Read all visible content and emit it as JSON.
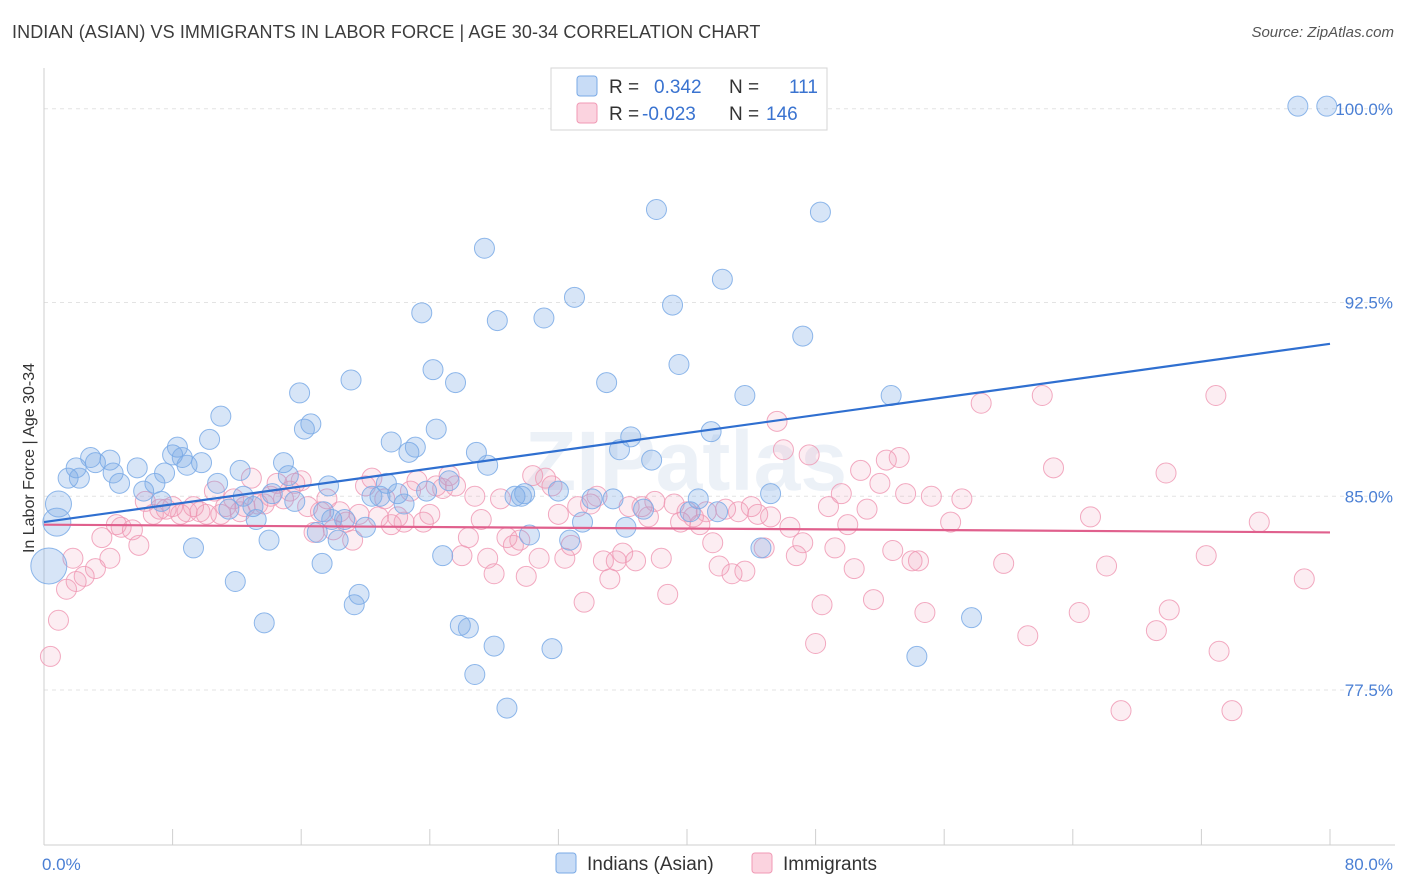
{
  "title": "INDIAN (ASIAN) VS IMMIGRANTS IN LABOR FORCE | AGE 30-34 CORRELATION CHART",
  "source": "Source: ZipAtlas.com",
  "watermark": "ZIPatlas",
  "chart_data": {
    "type": "scatter",
    "ylabel": "In Labor Force | Age 30-34",
    "xlim": [
      0,
      80
    ],
    "ylim": [
      71.5,
      101.5
    ],
    "x_tick_labels": [
      "0.0%",
      "80.0%"
    ],
    "y_ticks": [
      77.5,
      85.0,
      92.5,
      100.0
    ],
    "y_tick_labels": [
      "77.5%",
      "85.0%",
      "92.5%",
      "100.0%"
    ],
    "grid": "horizontal dashed",
    "legend_top": [
      {
        "series": "Indians (Asian)",
        "r_label": "R =",
        "r_value": "0.342",
        "n_label": "N =",
        "n_value": "111"
      },
      {
        "series": "Immigrants",
        "r_label": "R =",
        "r_value": "-0.023",
        "n_label": "N =",
        "n_value": "146"
      }
    ],
    "series": [
      {
        "name": "Indians (Asian)",
        "color": "#7aaae6",
        "line_color": "#2f6fd0",
        "trend": {
          "x": [
            0,
            80
          ],
          "y": [
            84.0,
            90.9
          ]
        },
        "points": [
          [
            0.3,
            82.3
          ],
          [
            0.9,
            84.7
          ],
          [
            0.8,
            84.0
          ],
          [
            1.5,
            85.7
          ],
          [
            2.0,
            86.1
          ],
          [
            2.2,
            85.7
          ],
          [
            2.9,
            86.5
          ],
          [
            3.2,
            86.3
          ],
          [
            4.1,
            86.4
          ],
          [
            4.3,
            85.9
          ],
          [
            4.7,
            85.5
          ],
          [
            5.8,
            86.1
          ],
          [
            6.2,
            85.2
          ],
          [
            6.9,
            85.5
          ],
          [
            7.3,
            84.8
          ],
          [
            7.5,
            85.9
          ],
          [
            8.0,
            86.6
          ],
          [
            8.3,
            86.9
          ],
          [
            8.6,
            86.5
          ],
          [
            8.9,
            86.2
          ],
          [
            9.3,
            83.0
          ],
          [
            9.8,
            86.3
          ],
          [
            10.3,
            87.2
          ],
          [
            10.8,
            85.5
          ],
          [
            11.0,
            88.1
          ],
          [
            11.5,
            84.5
          ],
          [
            11.9,
            81.7
          ],
          [
            12.2,
            86.0
          ],
          [
            12.4,
            85.0
          ],
          [
            13.0,
            84.6
          ],
          [
            13.2,
            84.1
          ],
          [
            13.7,
            80.1
          ],
          [
            14.0,
            83.3
          ],
          [
            14.2,
            85.1
          ],
          [
            14.9,
            86.3
          ],
          [
            15.2,
            85.8
          ],
          [
            15.6,
            84.8
          ],
          [
            15.9,
            89.0
          ],
          [
            16.2,
            87.6
          ],
          [
            16.6,
            87.8
          ],
          [
            17.0,
            83.6
          ],
          [
            17.3,
            82.4
          ],
          [
            17.7,
            85.4
          ],
          [
            17.9,
            84.1
          ],
          [
            18.3,
            83.3
          ],
          [
            18.7,
            84.1
          ],
          [
            19.1,
            89.5
          ],
          [
            19.3,
            80.8
          ],
          [
            19.6,
            81.2
          ],
          [
            20.0,
            83.8
          ],
          [
            20.4,
            85.0
          ],
          [
            20.9,
            85.0
          ],
          [
            21.3,
            85.5
          ],
          [
            21.6,
            87.1
          ],
          [
            22.0,
            85.1
          ],
          [
            22.4,
            84.7
          ],
          [
            22.7,
            86.7
          ],
          [
            23.1,
            86.9
          ],
          [
            23.5,
            92.1
          ],
          [
            23.8,
            85.2
          ],
          [
            24.2,
            89.9
          ],
          [
            24.4,
            87.6
          ],
          [
            24.8,
            82.7
          ],
          [
            25.2,
            85.6
          ],
          [
            25.6,
            89.4
          ],
          [
            25.9,
            80.0
          ],
          [
            26.4,
            79.9
          ],
          [
            26.8,
            78.1
          ],
          [
            26.9,
            86.7
          ],
          [
            27.4,
            94.6
          ],
          [
            27.6,
            86.2
          ],
          [
            28.0,
            79.2
          ],
          [
            28.2,
            91.8
          ],
          [
            28.8,
            76.8
          ],
          [
            29.3,
            85.0
          ],
          [
            29.7,
            85.0
          ],
          [
            30.2,
            83.5
          ],
          [
            31.1,
            91.9
          ],
          [
            31.6,
            79.1
          ],
          [
            32.0,
            85.2
          ],
          [
            32.7,
            83.3
          ],
          [
            33.0,
            92.7
          ],
          [
            34.1,
            84.9
          ],
          [
            35.0,
            89.4
          ],
          [
            35.4,
            84.9
          ],
          [
            35.8,
            86.8
          ],
          [
            36.2,
            83.8
          ],
          [
            36.5,
            87.3
          ],
          [
            37.3,
            84.5
          ],
          [
            37.8,
            86.4
          ],
          [
            38.1,
            96.1
          ],
          [
            39.1,
            92.4
          ],
          [
            39.5,
            90.1
          ],
          [
            40.2,
            84.4
          ],
          [
            40.7,
            84.9
          ],
          [
            41.5,
            87.5
          ],
          [
            41.9,
            84.4
          ],
          [
            42.2,
            93.4
          ],
          [
            43.6,
            88.9
          ],
          [
            44.6,
            83.0
          ],
          [
            45.2,
            85.1
          ],
          [
            47.2,
            91.2
          ],
          [
            52.7,
            88.9
          ],
          [
            54.3,
            78.8
          ],
          [
            57.7,
            80.3
          ],
          [
            78.0,
            100.1
          ],
          [
            79.8,
            100.1
          ],
          [
            48.3,
            96.0
          ],
          [
            33.5,
            84.0
          ],
          [
            29.9,
            85.1
          ],
          [
            17.4,
            84.4
          ]
        ]
      },
      {
        "name": "Immigrants",
        "color": "#f09ab5",
        "line_color": "#e0608d",
        "trend": {
          "x": [
            0,
            80
          ],
          "y": [
            83.9,
            83.6
          ]
        },
        "points": [
          [
            0.4,
            78.8
          ],
          [
            0.9,
            80.2
          ],
          [
            1.4,
            81.4
          ],
          [
            1.8,
            82.6
          ],
          [
            2.0,
            81.7
          ],
          [
            2.5,
            81.9
          ],
          [
            3.2,
            82.2
          ],
          [
            3.6,
            83.4
          ],
          [
            4.1,
            82.6
          ],
          [
            4.5,
            83.9
          ],
          [
            4.8,
            83.8
          ],
          [
            5.5,
            83.7
          ],
          [
            5.9,
            83.1
          ],
          [
            6.3,
            84.8
          ],
          [
            6.8,
            84.3
          ],
          [
            7.2,
            84.5
          ],
          [
            7.6,
            84.5
          ],
          [
            8.0,
            84.6
          ],
          [
            8.5,
            84.3
          ],
          [
            8.9,
            84.4
          ],
          [
            9.3,
            84.6
          ],
          [
            9.7,
            84.4
          ],
          [
            10.1,
            84.3
          ],
          [
            10.6,
            85.2
          ],
          [
            11.0,
            84.3
          ],
          [
            11.3,
            84.6
          ],
          [
            11.8,
            84.9
          ],
          [
            12.2,
            84.4
          ],
          [
            12.5,
            84.6
          ],
          [
            12.9,
            85.7
          ],
          [
            13.3,
            84.7
          ],
          [
            13.7,
            84.7
          ],
          [
            14.1,
            85.0
          ],
          [
            14.5,
            85.5
          ],
          [
            14.9,
            84.9
          ],
          [
            15.3,
            85.2
          ],
          [
            15.6,
            85.5
          ],
          [
            16.0,
            85.6
          ],
          [
            16.4,
            84.6
          ],
          [
            16.8,
            83.6
          ],
          [
            17.2,
            84.4
          ],
          [
            17.6,
            84.9
          ],
          [
            18.0,
            83.7
          ],
          [
            18.4,
            84.4
          ],
          [
            18.8,
            84.0
          ],
          [
            19.2,
            83.3
          ],
          [
            19.6,
            84.3
          ],
          [
            20.0,
            85.4
          ],
          [
            20.4,
            85.7
          ],
          [
            20.8,
            84.2
          ],
          [
            21.2,
            84.9
          ],
          [
            21.6,
            83.9
          ],
          [
            22.0,
            84.2
          ],
          [
            22.4,
            84.0
          ],
          [
            22.8,
            85.2
          ],
          [
            23.2,
            85.6
          ],
          [
            23.6,
            84.0
          ],
          [
            24.0,
            84.3
          ],
          [
            24.4,
            85.4
          ],
          [
            24.8,
            85.3
          ],
          [
            25.2,
            85.8
          ],
          [
            25.6,
            85.4
          ],
          [
            26.0,
            82.7
          ],
          [
            26.4,
            83.4
          ],
          [
            26.8,
            85.0
          ],
          [
            27.2,
            84.1
          ],
          [
            27.6,
            82.6
          ],
          [
            28.0,
            82.0
          ],
          [
            28.4,
            84.9
          ],
          [
            28.8,
            83.4
          ],
          [
            29.2,
            83.1
          ],
          [
            29.6,
            83.3
          ],
          [
            30.0,
            81.9
          ],
          [
            30.4,
            85.8
          ],
          [
            30.8,
            82.6
          ],
          [
            31.2,
            85.7
          ],
          [
            31.6,
            85.4
          ],
          [
            32.0,
            84.3
          ],
          [
            32.4,
            82.6
          ],
          [
            32.8,
            83.1
          ],
          [
            33.2,
            84.6
          ],
          [
            33.6,
            80.9
          ],
          [
            34.0,
            84.7
          ],
          [
            34.4,
            85.0
          ],
          [
            34.8,
            82.5
          ],
          [
            35.2,
            81.8
          ],
          [
            35.6,
            82.5
          ],
          [
            36.0,
            82.8
          ],
          [
            36.4,
            84.6
          ],
          [
            36.8,
            82.5
          ],
          [
            37.2,
            84.6
          ],
          [
            37.6,
            84.2
          ],
          [
            38.0,
            84.8
          ],
          [
            38.4,
            82.6
          ],
          [
            38.8,
            81.2
          ],
          [
            39.2,
            84.7
          ],
          [
            39.6,
            84.0
          ],
          [
            40.0,
            84.4
          ],
          [
            40.4,
            84.2
          ],
          [
            40.8,
            83.9
          ],
          [
            41.2,
            84.4
          ],
          [
            41.6,
            83.2
          ],
          [
            42.0,
            82.3
          ],
          [
            42.4,
            84.5
          ],
          [
            42.8,
            82.0
          ],
          [
            43.2,
            84.4
          ],
          [
            43.6,
            82.1
          ],
          [
            44.0,
            84.6
          ],
          [
            44.4,
            84.3
          ],
          [
            44.8,
            83.0
          ],
          [
            45.2,
            84.2
          ],
          [
            45.6,
            87.9
          ],
          [
            46.0,
            86.8
          ],
          [
            46.4,
            83.8
          ],
          [
            46.8,
            82.7
          ],
          [
            47.2,
            83.2
          ],
          [
            47.6,
            86.6
          ],
          [
            48.0,
            79.3
          ],
          [
            48.4,
            80.8
          ],
          [
            48.8,
            84.6
          ],
          [
            49.2,
            83.0
          ],
          [
            49.6,
            85.1
          ],
          [
            50.0,
            83.9
          ],
          [
            50.4,
            82.2
          ],
          [
            50.8,
            86.0
          ],
          [
            51.2,
            84.5
          ],
          [
            51.6,
            81.0
          ],
          [
            52.0,
            85.5
          ],
          [
            52.4,
            86.4
          ],
          [
            52.8,
            82.9
          ],
          [
            53.2,
            86.5
          ],
          [
            53.6,
            85.1
          ],
          [
            54.0,
            82.5
          ],
          [
            54.4,
            82.5
          ],
          [
            54.8,
            80.5
          ],
          [
            55.2,
            85.0
          ],
          [
            56.4,
            84.0
          ],
          [
            57.1,
            84.9
          ],
          [
            58.3,
            88.6
          ],
          [
            59.7,
            82.4
          ],
          [
            61.2,
            79.6
          ],
          [
            62.1,
            88.9
          ],
          [
            62.8,
            86.1
          ],
          [
            64.4,
            80.5
          ],
          [
            65.1,
            84.2
          ],
          [
            66.1,
            82.3
          ],
          [
            67.0,
            76.7
          ],
          [
            69.2,
            79.8
          ],
          [
            70.0,
            80.6
          ],
          [
            72.3,
            82.7
          ],
          [
            73.1,
            79.0
          ],
          [
            73.9,
            76.7
          ],
          [
            78.4,
            81.8
          ],
          [
            69.8,
            85.9
          ],
          [
            72.9,
            88.9
          ],
          [
            75.6,
            84.0
          ]
        ]
      }
    ]
  },
  "bottom_legend": [
    {
      "label": "Indians (Asian)"
    },
    {
      "label": "Immigrants"
    }
  ]
}
